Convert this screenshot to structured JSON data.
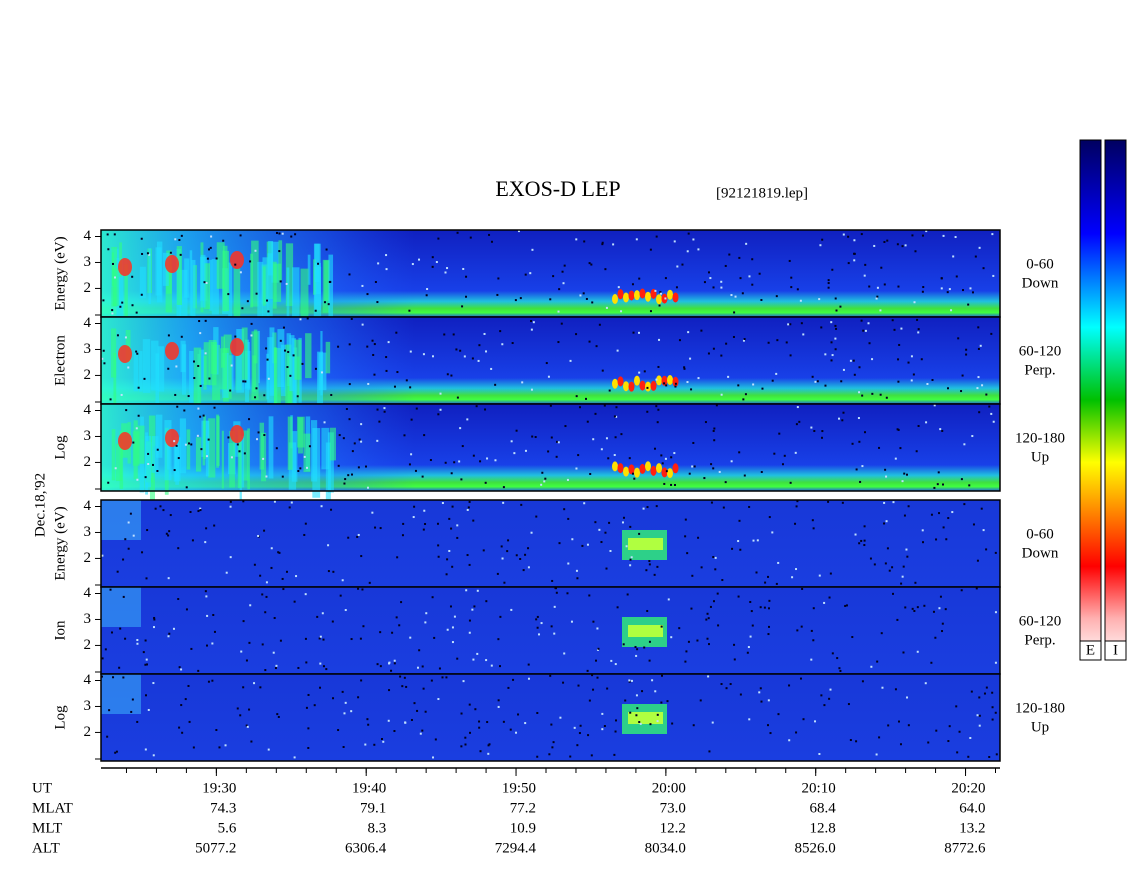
{
  "chart_data": {
    "type": "spectrogram",
    "title": "EXOS-D LEP",
    "file": "[92121819.lep]",
    "date": "Dec.18,'92",
    "groups": [
      {
        "words": [
          "Log",
          "Electron",
          "Energy (eV)"
        ],
        "species": "electron",
        "panels": [
          {
            "label": "0-60",
            "sublabel": "Down"
          },
          {
            "label": "60-120",
            "sublabel": "Perp."
          },
          {
            "label": "120-180",
            "sublabel": "Up"
          }
        ]
      },
      {
        "words": [
          "Log",
          "Ion",
          "Energy (eV)"
        ],
        "species": "ion",
        "panels": [
          {
            "label": "0-60",
            "sublabel": "Down"
          },
          {
            "label": "60-120",
            "sublabel": "Perp."
          },
          {
            "label": "120-180",
            "sublabel": "Up"
          }
        ]
      }
    ],
    "ylim": [
      0.9,
      4.25
    ],
    "yticks": [
      2,
      3,
      4
    ],
    "xlim": [
      1162.3,
      1222.3
    ],
    "xticks": [
      {
        "value": 1170,
        "label": "19:30"
      },
      {
        "value": 1180,
        "label": "19:40"
      },
      {
        "value": 1190,
        "label": "19:50"
      },
      {
        "value": 1200,
        "label": "20:00"
      },
      {
        "value": 1210,
        "label": "20:10"
      },
      {
        "value": 1220,
        "label": "20:20"
      }
    ],
    "rows": [
      {
        "name": "UT"
      },
      {
        "name": "MLAT",
        "values": [
          "74.3",
          "79.1",
          "77.2",
          "73.0",
          "68.4",
          "64.0"
        ]
      },
      {
        "name": "MLT",
        "values": [
          "5.6",
          "8.3",
          "10.9",
          "12.2",
          "12.8",
          "13.2"
        ]
      },
      {
        "name": "ALT",
        "values": [
          "5077.2",
          "6306.4",
          "7294.4",
          "8034.0",
          "8526.0",
          "8772.6"
        ]
      }
    ],
    "colorbars": [
      "E",
      "I"
    ]
  }
}
